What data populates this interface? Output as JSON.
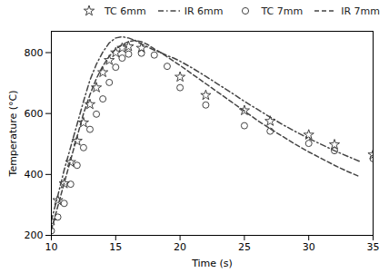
{
  "chart_data": {
    "type": "line",
    "xlabel": "Time (s)",
    "ylabel": "Temperature (°C)",
    "xlim": [
      10,
      35
    ],
    "ylim": [
      200,
      870
    ],
    "xticks": [
      10,
      15,
      20,
      25,
      30,
      35
    ],
    "yticks": [
      200,
      400,
      600,
      800
    ],
    "grid": false,
    "legend": "upper right",
    "series": [
      {
        "name": "TC 6mm",
        "type": "scatter",
        "marker": "star",
        "color": "#444444",
        "x": [
          10,
          10.5,
          11,
          11.5,
          12,
          12.5,
          13,
          13.5,
          14,
          14.5,
          15,
          15.5,
          16,
          17,
          20,
          22,
          25,
          27,
          30,
          32,
          35
        ],
        "values": [
          248,
          315,
          370,
          440,
          510,
          570,
          630,
          685,
          735,
          775,
          800,
          815,
          820,
          815,
          720,
          660,
          610,
          575,
          530,
          498,
          465
        ]
      },
      {
        "name": "IR 6mm",
        "type": "line",
        "line_style": "dashdot",
        "color": "#444444",
        "x": [
          10.0,
          10.5,
          11.0,
          11.5,
          12.0,
          12.5,
          13.0,
          13.5,
          14.0,
          14.5,
          15.0,
          15.5,
          16.0,
          16.5,
          17.0,
          17.5,
          18.0,
          18.5,
          19.0,
          19.5,
          20.0,
          21.0,
          22.0,
          23.0,
          24.0,
          25.0,
          26.0,
          27.0,
          28.0,
          29.0,
          30.0,
          31.0,
          32.0,
          33.0,
          34.0
        ],
        "values": [
          248,
          330,
          415,
          490,
          565,
          640,
          710,
          762,
          802,
          832,
          848,
          852,
          848,
          840,
          828,
          818,
          808,
          800,
          790,
          782,
          772,
          748,
          722,
          695,
          668,
          640,
          614,
          588,
          563,
          540,
          518,
          498,
          478,
          460,
          442
        ]
      },
      {
        "name": "TC 7mm",
        "type": "scatter",
        "marker": "circle",
        "color": "#444444",
        "x": [
          10,
          10.5,
          11,
          11.5,
          12,
          12.5,
          13,
          13.5,
          14,
          14.5,
          15,
          15.5,
          16,
          17,
          18,
          19,
          20,
          22,
          25,
          27,
          30,
          32,
          35
        ],
        "values": [
          215,
          260,
          305,
          368,
          430,
          488,
          548,
          598,
          648,
          702,
          752,
          782,
          795,
          798,
          792,
          755,
          685,
          628,
          560,
          542,
          502,
          478,
          452
        ]
      },
      {
        "name": "IR 7mm",
        "type": "line",
        "line_style": "dashed",
        "color": "#444444",
        "x": [
          10.0,
          10.5,
          11.0,
          11.5,
          12.0,
          12.5,
          13.0,
          13.5,
          14.0,
          14.5,
          15.0,
          15.5,
          16.0,
          16.5,
          17.0,
          17.5,
          18.0,
          18.5,
          19.0,
          19.5,
          20.0,
          21.0,
          22.0,
          23.0,
          24.0,
          25.0,
          26.0,
          27.0,
          28.0,
          29.0,
          30.0,
          31.0,
          32.0,
          33.0,
          34.0
        ],
        "values": [
          218,
          295,
          372,
          448,
          524,
          600,
          662,
          715,
          756,
          788,
          812,
          826,
          836,
          840,
          836,
          826,
          812,
          800,
          786,
          772,
          758,
          728,
          698,
          668,
          638,
          608,
          578,
          550,
          524,
          498,
          474,
          452,
          430,
          410,
          392
        ]
      }
    ]
  }
}
